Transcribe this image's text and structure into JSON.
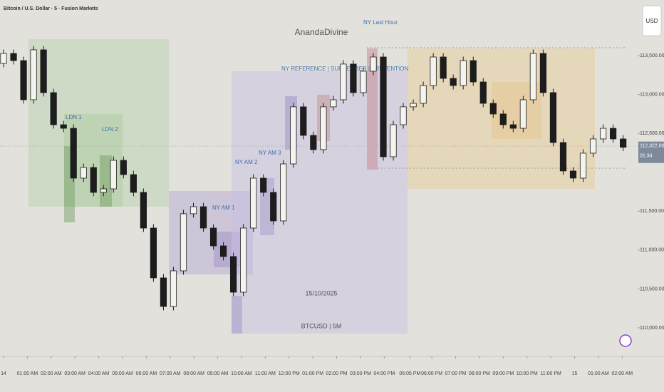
{
  "chart_data": {
    "type": "candlestick",
    "symbol_title": "Bitcoin / U.S. Dollar · 5 · Fusion Markets",
    "watermark": "AnandaDivine",
    "date_label": "15/10/2025",
    "pair_label": "BTCUSD | 5M",
    "currency_button": "USD",
    "price_label": "112,322.00",
    "countdown": "01:34",
    "annotations": [
      "LDN 1",
      "LDN 2",
      "NY AM 1",
      "NY AM 2",
      "NY AM 3",
      "NY Last Hour",
      "NY REFERENCE | SUPREMBER | PREVENTION"
    ],
    "up_color": "#f4f3ee",
    "down_color": "#1d1d1d",
    "xlim": [
      -0.15,
      26.65
    ],
    "ylim": [
      109633,
      114216
    ],
    "xticks": [
      {
        "value": 0,
        "label": "14"
      },
      {
        "value": 1,
        "label": "01:00 AM"
      },
      {
        "value": 2,
        "label": "02:00 AM"
      },
      {
        "value": 3,
        "label": "03:00 AM"
      },
      {
        "value": 4,
        "label": "04:00 AM"
      },
      {
        "value": 5,
        "label": "05:00 AM"
      },
      {
        "value": 6,
        "label": "06:00 AM"
      },
      {
        "value": 7,
        "label": "07:00 AM"
      },
      {
        "value": 8,
        "label": "08:00 AM"
      },
      {
        "value": 9,
        "label": "09:00 AM"
      },
      {
        "value": 10,
        "label": "10:00 AM"
      },
      {
        "value": 11,
        "label": "11:00 AM"
      },
      {
        "value": 12,
        "label": "12:00 PM"
      },
      {
        "value": 13,
        "label": "01:00 PM"
      },
      {
        "value": 14,
        "label": "02:00 PM"
      },
      {
        "value": 15,
        "label": "03:00 PM"
      },
      {
        "value": 16,
        "label": "04:00 PM"
      },
      {
        "value": 17.08,
        "label": "05:05 PM"
      },
      {
        "value": 18,
        "label": "06:00 PM"
      },
      {
        "value": 19,
        "label": "07:00 PM"
      },
      {
        "value": 20,
        "label": "08:00 PM"
      },
      {
        "value": 21,
        "label": "09:00 PM"
      },
      {
        "value": 22,
        "label": "10:00 PM"
      },
      {
        "value": 23,
        "label": "11:00 PM"
      },
      {
        "value": 24,
        "label": "15"
      },
      {
        "value": 25,
        "label": "01:00 AM"
      },
      {
        "value": 26,
        "label": "02:00 AM"
      }
    ],
    "yticks": [
      {
        "value": 110000,
        "label": "110,000.00"
      },
      {
        "value": 110500,
        "label": "110,500.00"
      },
      {
        "value": 111000,
        "label": "111,000.00"
      },
      {
        "value": 111500,
        "label": "111,500.00"
      },
      {
        "value": 112500,
        "label": "112,500.00"
      },
      {
        "value": 113000,
        "label": "113,000.00"
      },
      {
        "value": 113500,
        "label": "113,500.00"
      }
    ],
    "x": [
      0,
      0.42,
      0.84,
      1.26,
      1.68,
      2.1,
      2.52,
      2.94,
      3.36,
      3.78,
      4.2,
      4.62,
      5.04,
      5.46,
      5.88,
      6.3,
      6.72,
      7.14,
      7.56,
      7.98,
      8.4,
      8.82,
      9.24,
      9.66,
      10.08,
      10.5,
      10.92,
      11.34,
      11.76,
      12.18,
      12.6,
      13.02,
      13.44,
      13.86,
      14.28,
      14.7,
      15.12,
      15.54,
      15.96,
      16.38,
      16.8,
      17.22,
      17.64,
      18.06,
      18.48,
      18.9,
      19.32,
      19.74,
      20.16,
      20.58,
      21,
      21.42,
      21.84,
      22.26,
      22.68,
      23.1,
      23.52,
      23.94,
      24.36,
      24.78,
      25.2,
      25.62,
      26.04
    ],
    "open": [
      113400,
      113529,
      113437,
      112933,
      113575,
      113025,
      112612,
      112566,
      111925,
      112062,
      111742,
      111787,
      112154,
      111971,
      111742,
      111283,
      110642,
      110275,
      110733,
      111467,
      111558,
      111283,
      111054,
      110917,
      110458,
      111283,
      111925,
      111742,
      111375,
      112108,
      112842,
      112475,
      112292,
      112842,
      112933,
      113392,
      113025,
      113300,
      113483,
      112200,
      112612,
      112842,
      112887,
      113116,
      113483,
      113208,
      113116,
      113437,
      113162,
      112887,
      112750,
      112612,
      112566,
      112933,
      113529,
      113025,
      112383,
      112017,
      111925,
      112246,
      112429,
      112566,
      112429
    ],
    "high": [
      113579,
      113579,
      113487,
      113625,
      113625,
      113075,
      112662,
      112616,
      112112,
      112112,
      111837,
      112204,
      112204,
      112021,
      111792,
      111333,
      110692,
      110783,
      111517,
      111608,
      111608,
      111333,
      111104,
      110967,
      111333,
      111975,
      111975,
      111792,
      112158,
      112892,
      112892,
      112525,
      112892,
      112983,
      113442,
      113442,
      113350,
      113533,
      113533,
      112662,
      112892,
      112937,
      113166,
      113533,
      113533,
      113258,
      113487,
      113487,
      113212,
      112937,
      112800,
      112662,
      112983,
      113579,
      113579,
      113075,
      112433,
      112067,
      112296,
      112479,
      112616,
      112616,
      112479
    ],
    "low": [
      113350,
      113387,
      112883,
      112883,
      112975,
      112562,
      112516,
      111875,
      111875,
      111692,
      111692,
      111737,
      111921,
      111692,
      111233,
      110592,
      110225,
      110225,
      110683,
      111417,
      111233,
      111004,
      110867,
      110408,
      110408,
      111233,
      111692,
      111325,
      111325,
      112058,
      112425,
      112242,
      112242,
      112792,
      112883,
      112975,
      112975,
      113250,
      112150,
      112150,
      112562,
      112792,
      112837,
      113066,
      113158,
      113066,
      113066,
      113112,
      112837,
      112700,
      112562,
      112516,
      112516,
      112883,
      112975,
      112333,
      111967,
      111875,
      111875,
      112196,
      112379,
      112379,
      112272
    ],
    "close": [
      113529,
      113437,
      112933,
      113575,
      113025,
      112612,
      112566,
      111925,
      112062,
      111742,
      111787,
      112154,
      111971,
      111742,
      111283,
      110642,
      110275,
      110733,
      111467,
      111558,
      111283,
      111054,
      110917,
      110458,
      111283,
      111925,
      111742,
      111375,
      112108,
      112842,
      112475,
      112292,
      112842,
      112933,
      113392,
      113025,
      113300,
      113483,
      112200,
      112612,
      112842,
      112887,
      113116,
      113483,
      113208,
      113116,
      113437,
      113162,
      112887,
      112750,
      112612,
      112566,
      112933,
      113529,
      113025,
      112383,
      112017,
      111925,
      112246,
      112429,
      112566,
      112429,
      112322
    ]
  }
}
